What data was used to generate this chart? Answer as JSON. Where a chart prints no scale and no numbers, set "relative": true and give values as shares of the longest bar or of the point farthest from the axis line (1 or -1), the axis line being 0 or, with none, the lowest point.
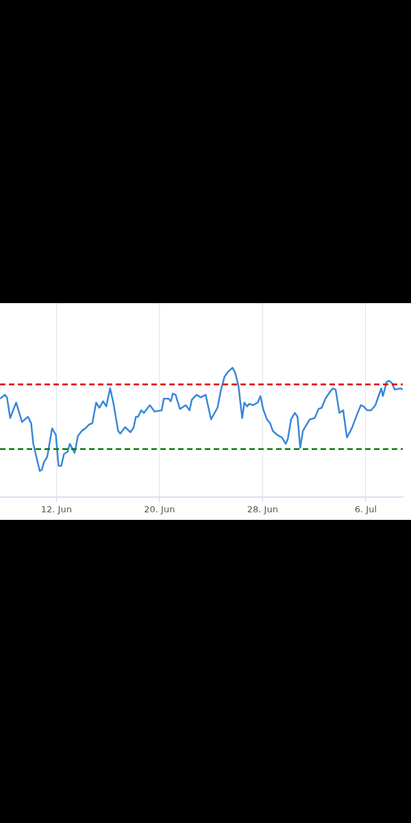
{
  "chart_data": {
    "type": "line",
    "relative": true,
    "grid": "x",
    "legend": false,
    "marker": "none",
    "line_style": "solid",
    "xlim": [
      "--06-07T15:00",
      "--07-08T21:00"
    ],
    "xticks": [
      {
        "value": "--06-12",
        "label": "12. Jun"
      },
      {
        "value": "--06-20",
        "label": "20. Jun"
      },
      {
        "value": "--06-28",
        "label": "28. Jun"
      },
      {
        "value": "--07-06",
        "label": "6. Jul"
      }
    ],
    "ref_lines": [
      {
        "axis": "y",
        "value": 0.87,
        "label": null,
        "color": "#e00000",
        "line_style": "dashed"
      },
      {
        "axis": "y",
        "value": 0.37,
        "label": null,
        "color": "#008000",
        "line_style": "dashed"
      }
    ],
    "series": [
      {
        "color": "#3a87d9",
        "x": [
          "--06-07T15:00",
          "--06-08T00:00",
          "--06-08T04:00",
          "--06-08T10:00",
          "--06-08T21:00",
          "--06-09T08:00",
          "--06-09T19:00",
          "--06-10T01:00",
          "--06-10T05:00",
          "--06-10T17:00",
          "--06-10T21:00",
          "--06-11T01:00",
          "--06-11T07:00",
          "--06-11T16:00",
          "--06-11T23:00",
          "--06-12T04:00",
          "--06-12T09:00",
          "--06-12T14:00",
          "--06-12T21:00",
          "--06-13T01:00",
          "--06-13T10:00",
          "--06-13T16:00",
          "--06-13T23:00",
          "--06-14T06:00",
          "--06-14T13:00",
          "--06-14T19:00",
          "--06-15T02:00",
          "--06-15T08:00",
          "--06-15T15:00",
          "--06-15T21:00",
          "--06-16T04:00",
          "--06-16T10:00",
          "--06-16T19:00",
          "--06-16T23:00",
          "--06-17T08:00",
          "--06-17T18:00",
          "--06-18T00:00",
          "--06-18T04:00",
          "--06-18T08:00",
          "--06-18T14:00",
          "--06-18T19:00",
          "--06-19T06:00",
          "--06-19T15:00",
          "--06-20T04:00",
          "--06-20T08:00",
          "--06-20T17:00",
          "--06-20T21:00",
          "--06-21T01:00",
          "--06-21T06:00",
          "--06-21T14:00",
          "--06-22T01:00",
          "--06-22T08:00",
          "--06-22T12:00",
          "--06-22T21:00",
          "--06-23T05:00",
          "--06-23T14:00",
          "--06-24T00:00",
          "--06-24T12:00",
          "--06-24T18:00",
          "--06-25T01:00",
          "--06-25T08:00",
          "--06-25T16:00",
          "--06-25T21:00",
          "--06-26T03:00",
          "--06-26T10:00",
          "--06-26T14:00",
          "--06-26T19:00",
          "--06-26T23:00",
          "--06-27T06:00",
          "--06-27T15:00",
          "--06-27T20:00",
          "--06-28T01:00",
          "--06-28T08:00",
          "--06-28T14:00",
          "--06-28T19:00",
          "--06-29T03:00",
          "--06-29T12:00",
          "--06-29T19:00",
          "--06-29T23:00",
          "--06-30T05:00",
          "--06-30T12:00",
          "--06-30T17:00",
          "--06-30T22:00",
          "--07-01T03:00",
          "--07-01T10:00",
          "--07-01T16:00",
          "--07-02T01:00",
          "--07-02T08:00",
          "--07-02T14:00",
          "--07-02T21:00",
          "--07-03T05:00",
          "--07-03T11:00",
          "--07-03T16:00",
          "--07-03T23:00",
          "--07-04T06:00",
          "--07-04T13:00",
          "--07-04T22:00",
          "--07-05T08:00",
          "--07-05T15:00",
          "--07-05T20:00",
          "--07-06T03:00",
          "--07-06T10:00",
          "--07-06T18:00",
          "--07-07T05:00",
          "--07-07T08:00",
          "--07-07T15:00",
          "--07-07T19:00",
          "--07-08T01:00",
          "--07-08T06:00",
          "--07-08T17:00",
          "--07-08T21:00"
        ],
        "values": [
          0.76,
          0.79,
          0.77,
          0.61,
          0.73,
          0.58,
          0.62,
          0.57,
          0.41,
          0.2,
          0.21,
          0.27,
          0.31,
          0.53,
          0.48,
          0.24,
          0.24,
          0.33,
          0.35,
          0.41,
          0.34,
          0.47,
          0.51,
          0.53,
          0.56,
          0.57,
          0.73,
          0.69,
          0.74,
          0.7,
          0.84,
          0.73,
          0.51,
          0.49,
          0.54,
          0.5,
          0.54,
          0.62,
          0.62,
          0.67,
          0.65,
          0.71,
          0.66,
          0.67,
          0.76,
          0.76,
          0.74,
          0.8,
          0.79,
          0.68,
          0.71,
          0.67,
          0.75,
          0.79,
          0.77,
          0.79,
          0.6,
          0.69,
          0.82,
          0.93,
          0.97,
          1,
          0.96,
          0.86,
          0.61,
          0.73,
          0.7,
          0.72,
          0.71,
          0.73,
          0.78,
          0.68,
          0.6,
          0.57,
          0.51,
          0.48,
          0.46,
          0.41,
          0.45,
          0.6,
          0.65,
          0.62,
          0.38,
          0.51,
          0.56,
          0.6,
          0.61,
          0.68,
          0.69,
          0.76,
          0.81,
          0.84,
          0.83,
          0.65,
          0.67,
          0.46,
          0.53,
          0.64,
          0.71,
          0.7,
          0.67,
          0.67,
          0.71,
          0.84,
          0.78,
          0.89,
          0.9,
          0.88,
          0.83,
          0.84,
          0.83
        ]
      }
    ]
  }
}
